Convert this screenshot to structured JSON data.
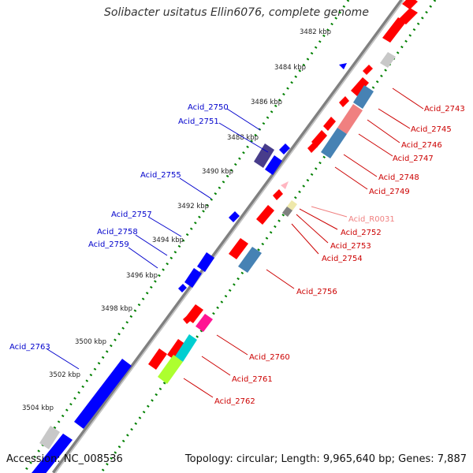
{
  "title": "Solibacter usitatus Ellin6076, complete genome",
  "footer": {
    "accession": "Accession: NC_008536",
    "summary": "Topology: circular; Length: 9,965,640 bp; Genes: 7,887"
  },
  "colors": {
    "backbone": "#808080",
    "forward_gene": "#ff0000",
    "reverse_gene": "#0000ff",
    "cds_blue": "#4682b4",
    "rna": "#ffb6c1",
    "tick_major": "#008000",
    "label_forward": "#cc0000",
    "label_reverse": "#0000cc"
  },
  "kbp_ticks": [
    "3482 kbp",
    "3484 kbp",
    "3486 kbp",
    "3488 kbp",
    "3490 kbp",
    "3492 kbp",
    "3494 kbp",
    "3496 kbp",
    "3498 kbp",
    "3500 kbp",
    "3502 kbp",
    "3504 kbp"
  ],
  "gene_labels_right": [
    "Acid_2743",
    "Acid_2745",
    "Acid_2746",
    "Acid_2747",
    "Acid_2748",
    "Acid_2749",
    "Acid_R0031",
    "Acid_2752",
    "Acid_2753",
    "Acid_2754",
    "Acid_2756",
    "Acid_2760",
    "Acid_2761",
    "Acid_2762"
  ],
  "gene_labels_left": [
    "Acid_2750",
    "Acid_2751",
    "Acid_2755",
    "Acid_2757",
    "Acid_2758",
    "Acid_2759",
    "Acid_2763"
  ]
}
